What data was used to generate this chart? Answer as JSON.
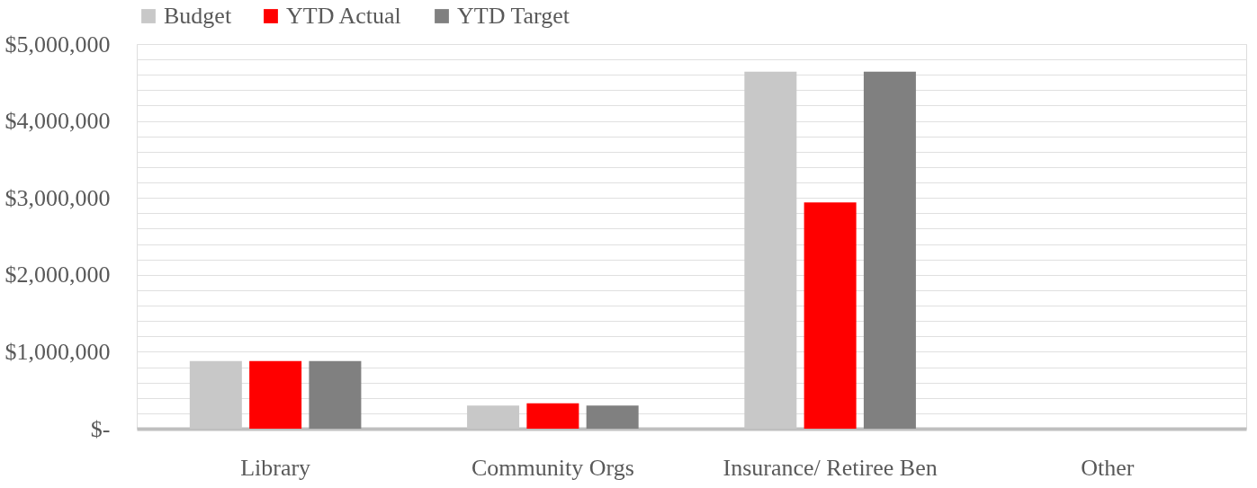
{
  "chart_data": {
    "type": "bar",
    "categories": [
      "Library",
      "Community Orgs",
      "Insurance/ Retiree Ben",
      "Other"
    ],
    "series": [
      {
        "name": "Budget",
        "color": "#c8c8c8",
        "values": [
          880000,
          300000,
          4640000,
          0
        ]
      },
      {
        "name": "YTD Actual",
        "color": "#ff0000",
        "values": [
          880000,
          330000,
          2940000,
          0
        ]
      },
      {
        "name": "YTD Target",
        "color": "#808080",
        "values": [
          880000,
          300000,
          4640000,
          0
        ]
      }
    ],
    "ylim": [
      0,
      5000000
    ],
    "yticks": [
      {
        "value": 0,
        "label": "$-"
      },
      {
        "value": 200000,
        "label": null
      },
      {
        "value": 400000,
        "label": null
      },
      {
        "value": 600000,
        "label": null
      },
      {
        "value": 800000,
        "label": null
      },
      {
        "value": 1000000,
        "label": "$1,000,000"
      },
      {
        "value": 1200000,
        "label": null
      },
      {
        "value": 1400000,
        "label": null
      },
      {
        "value": 1600000,
        "label": null
      },
      {
        "value": 1800000,
        "label": null
      },
      {
        "value": 2000000,
        "label": "$2,000,000"
      },
      {
        "value": 2200000,
        "label": null
      },
      {
        "value": 2400000,
        "label": null
      },
      {
        "value": 2600000,
        "label": null
      },
      {
        "value": 2800000,
        "label": null
      },
      {
        "value": 3000000,
        "label": "$3,000,000"
      },
      {
        "value": 3200000,
        "label": null
      },
      {
        "value": 3400000,
        "label": null
      },
      {
        "value": 3600000,
        "label": null
      },
      {
        "value": 3800000,
        "label": null
      },
      {
        "value": 4000000,
        "label": "$4,000,000"
      },
      {
        "value": 4200000,
        "label": null
      },
      {
        "value": 4400000,
        "label": null
      },
      {
        "value": 4600000,
        "label": null
      },
      {
        "value": 4800000,
        "label": null
      },
      {
        "value": 5000000,
        "label": "$5,000,000"
      }
    ],
    "grid": "y",
    "legend": "top"
  }
}
